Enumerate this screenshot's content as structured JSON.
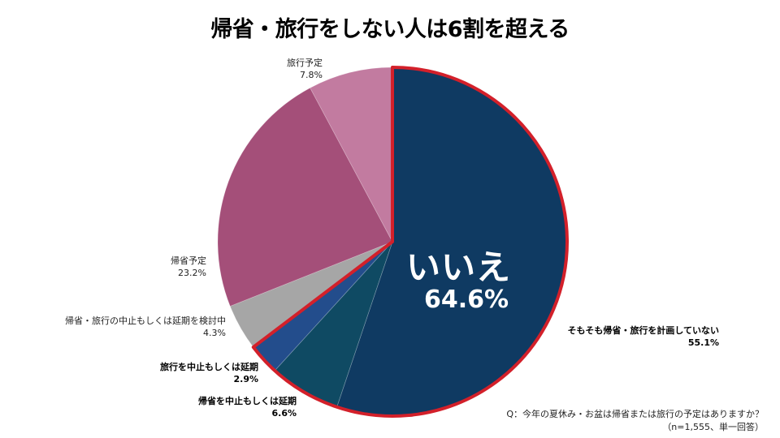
{
  "title": "帰省・旅行をしない人は6割を超える",
  "center_label": {
    "text": "いいえ",
    "value": "64.6%"
  },
  "labels": [
    {
      "name": "そもそも帰省・旅行を計画していない",
      "value": "55.1%"
    },
    {
      "name": "帰省を中止もしくは延期",
      "value": "6.6%"
    },
    {
      "name": "旅行を中止もしくは延期",
      "value": "2.9%"
    },
    {
      "name": "帰省・旅行の中止もしくは延期を検討中",
      "value": "4.3%"
    },
    {
      "name": "帰省予定",
      "value": "23.2%"
    },
    {
      "name": "旅行予定",
      "value": "7.8%"
    }
  ],
  "note": {
    "question": "Q：今年の夏休み・お盆は帰省または旅行の予定はありますか？",
    "sample": "（n=1,555、単一回答）"
  },
  "colors": {
    "not_planned": "#0f3a62",
    "cancel_homecoming": "#0f4a63",
    "cancel_travel": "#234d8c",
    "considering": "#a6a6a6",
    "homecoming": "#a44f79",
    "travel": "#c27ba0",
    "highlight_border": "#d3202a"
  },
  "chart_data": {
    "type": "pie",
    "title": "帰省・旅行をしない人は6割を超える",
    "start_angle": "12 o'clock, clockwise",
    "categories": [
      "そもそも帰省・旅行を計画していない",
      "帰省を中止もしくは延期",
      "旅行を中止もしくは延期",
      "帰省・旅行の中止もしくは延期を検討中",
      "帰省予定",
      "旅行予定"
    ],
    "values": [
      55.1,
      6.6,
      2.9,
      4.3,
      23.2,
      7.8
    ],
    "unit": "%",
    "group_highlight": {
      "label": "いいえ",
      "value": 64.6,
      "members": [
        0,
        1,
        2
      ],
      "border": "red"
    },
    "annotation": "Q：今年の夏休み・お盆は帰省または旅行の予定はありますか？（n=1,555、単一回答）"
  }
}
